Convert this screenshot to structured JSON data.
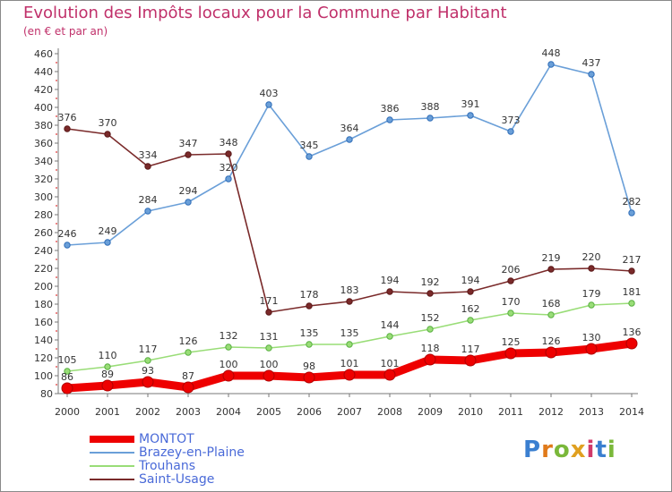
{
  "chart_data": {
    "type": "line",
    "title": "Evolution des Impôts locaux pour la Commune par Habitant",
    "subtitle": "(en € et par an)",
    "xlabel": "",
    "ylabel": "",
    "categories": [
      "2000",
      "2001",
      "2002",
      "2003",
      "2004",
      "2005",
      "2006",
      "2007",
      "2008",
      "2009",
      "2010",
      "2011",
      "2012",
      "2013",
      "2014"
    ],
    "ylim": [
      80,
      460
    ],
    "yticks": [
      80,
      100,
      120,
      140,
      160,
      180,
      200,
      220,
      240,
      260,
      280,
      300,
      320,
      340,
      360,
      380,
      400,
      420,
      440,
      460
    ],
    "series": [
      {
        "name": "MONTOT",
        "color": "#ee0000",
        "values": [
          86,
          89,
          93,
          87,
          100,
          100,
          98,
          101,
          101,
          118,
          117,
          125,
          126,
          130,
          136
        ]
      },
      {
        "name": "Brazey-en-Plaine",
        "color": "#6a9fd8",
        "values": [
          246,
          249,
          284,
          294,
          320,
          403,
          345,
          364,
          386,
          388,
          391,
          373,
          448,
          437,
          282
        ]
      },
      {
        "name": "Trouhans",
        "color": "#99dd77",
        "values": [
          105,
          110,
          117,
          126,
          132,
          131,
          135,
          135,
          144,
          152,
          162,
          170,
          168,
          179,
          181
        ]
      },
      {
        "name": "Saint-Usage",
        "color": "#7a2a2a",
        "values": [
          376,
          370,
          334,
          347,
          348,
          171,
          178,
          183,
          194,
          192,
          194,
          206,
          219,
          220,
          217
        ]
      }
    ],
    "legend_position": "bottom-left",
    "grid": false
  },
  "logo": {
    "letters": [
      "P",
      "r",
      "o",
      "x",
      "i",
      "t",
      "i"
    ],
    "colors": [
      "#3a7fd0",
      "#e07a1a",
      "#7ab83a",
      "#e0a020",
      "#d03a6a",
      "#3a7fd0",
      "#7ab83a"
    ]
  }
}
